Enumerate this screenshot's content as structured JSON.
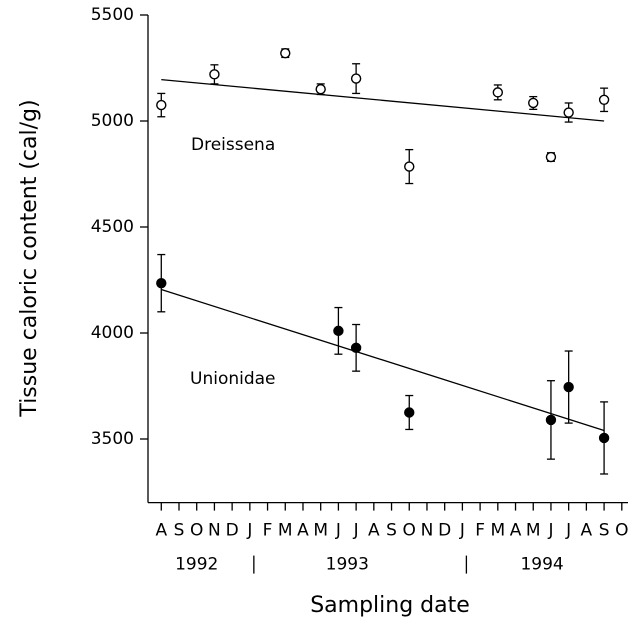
{
  "chart_data": {
    "type": "scatter",
    "xlabel": "Sampling date",
    "ylabel": "Tissue caloric content (cal/g)",
    "xlim": [
      -0.75,
      26.35
    ],
    "xticks": [
      {
        "value": 0,
        "label": "A"
      },
      {
        "value": 1,
        "label": "S"
      },
      {
        "value": 2,
        "label": "O"
      },
      {
        "value": 3,
        "label": "N"
      },
      {
        "value": 4,
        "label": "D"
      },
      {
        "value": 5,
        "label": "J"
      },
      {
        "value": 6,
        "label": "F"
      },
      {
        "value": 7,
        "label": "M"
      },
      {
        "value": 8,
        "label": "A"
      },
      {
        "value": 9,
        "label": "M"
      },
      {
        "value": 10,
        "label": "J"
      },
      {
        "value": 11,
        "label": "J"
      },
      {
        "value": 12,
        "label": "A"
      },
      {
        "value": 13,
        "label": "S"
      },
      {
        "value": 14,
        "label": "O"
      },
      {
        "value": 15,
        "label": "N"
      },
      {
        "value": 16,
        "label": "D"
      },
      {
        "value": 17,
        "label": "J"
      },
      {
        "value": 18,
        "label": "F"
      },
      {
        "value": 19,
        "label": "M"
      },
      {
        "value": 20,
        "label": "A"
      },
      {
        "value": 21,
        "label": "M"
      },
      {
        "value": 22,
        "label": "J"
      },
      {
        "value": 23,
        "label": "J"
      },
      {
        "value": 24,
        "label": "A"
      },
      {
        "value": 25,
        "label": "S"
      },
      {
        "value": 26,
        "label": "O"
      }
    ],
    "years": [
      {
        "label": "1992",
        "range": [
          0,
          4
        ]
      },
      {
        "label": "1993",
        "range": [
          5,
          16
        ]
      },
      {
        "label": "1994",
        "range": [
          17,
          26
        ]
      }
    ],
    "ylim": [
      3200,
      5500
    ],
    "yticks": [
      3500,
      4000,
      4500,
      5000,
      5500
    ],
    "series": [
      {
        "name": "Dreissena",
        "marker": "open",
        "color": "#000000",
        "x": [
          0,
          3,
          7,
          9,
          11,
          14,
          19,
          21,
          22,
          23,
          25
        ],
        "values": [
          5075,
          5220,
          5320,
          5150,
          5200,
          4785,
          5135,
          5085,
          4830,
          5040,
          5100
        ],
        "errors": [
          55,
          45,
          20,
          25,
          70,
          80,
          35,
          30,
          20,
          45,
          55
        ],
        "trend": {
          "x": [
            0,
            25
          ],
          "values": [
            5195,
            5000
          ]
        }
      },
      {
        "name": "Unionidae",
        "marker": "filled",
        "color": "#000000",
        "x": [
          0,
          10,
          11,
          14,
          22,
          23,
          25
        ],
        "values": [
          4235,
          4010,
          3930,
          3625,
          3590,
          3745,
          3505
        ],
        "errors": [
          135,
          110,
          110,
          80,
          185,
          170,
          170
        ],
        "trend": {
          "x": [
            0,
            25
          ],
          "values": [
            4205,
            3540
          ]
        }
      }
    ]
  }
}
